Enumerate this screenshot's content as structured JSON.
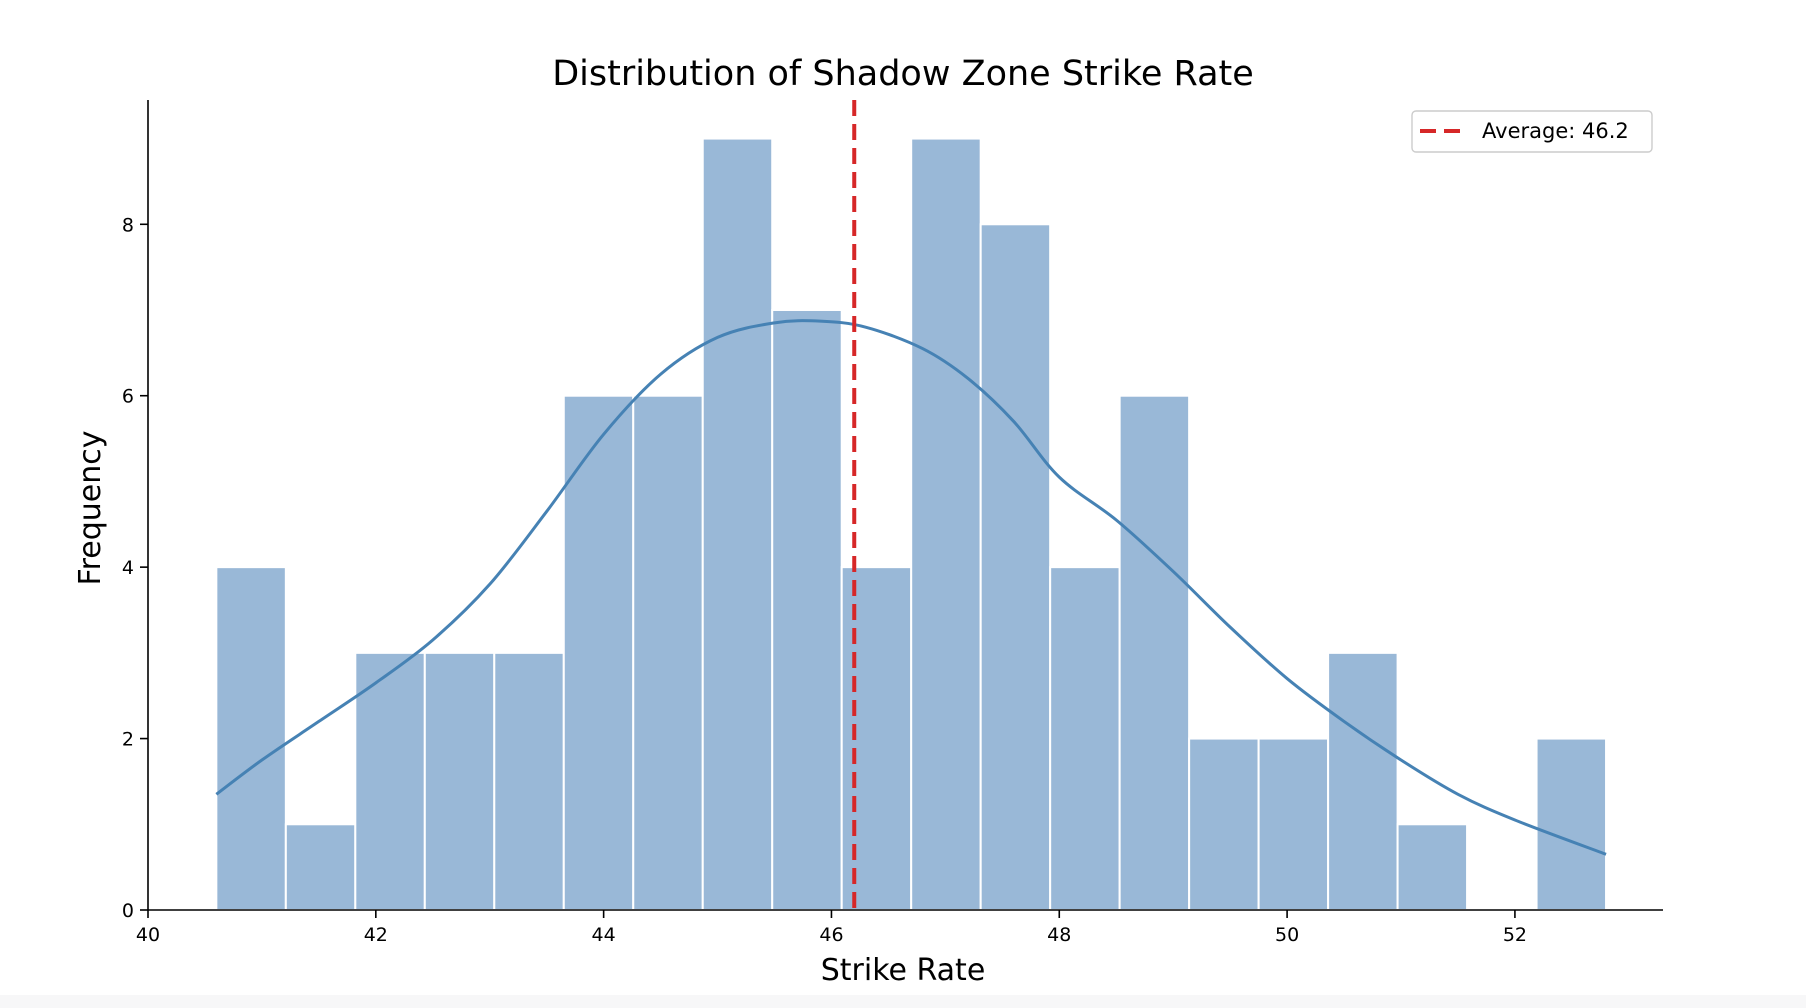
{
  "colors": {
    "bar_fill": "#99b8d7",
    "bar_edge": "#ffffff",
    "kde_line": "#4682b4",
    "mean_line": "#d62728",
    "axis": "#000000"
  },
  "chart_data": {
    "type": "histogram",
    "title": "Distribution of Shadow Zone Strike Rate",
    "xlabel": "Strike Rate",
    "ylabel": "Frequency",
    "xlim": [
      40,
      53.3
    ],
    "ylim": [
      0,
      9.45
    ],
    "xticks": [
      40,
      42,
      44,
      46,
      48,
      50,
      52
    ],
    "yticks": [
      0,
      2,
      4,
      6,
      8
    ],
    "grid": false,
    "legend_position": "top-right",
    "bins": [
      {
        "x0": 40.6,
        "x1": 41.21,
        "count": 4
      },
      {
        "x0": 41.21,
        "x1": 41.82,
        "count": 1
      },
      {
        "x0": 41.82,
        "x1": 42.43,
        "count": 3
      },
      {
        "x0": 42.43,
        "x1": 43.04,
        "count": 3
      },
      {
        "x0": 43.04,
        "x1": 43.65,
        "count": 3
      },
      {
        "x0": 43.65,
        "x1": 44.26,
        "count": 6
      },
      {
        "x0": 44.26,
        "x1": 44.87,
        "count": 6
      },
      {
        "x0": 44.87,
        "x1": 45.48,
        "count": 9
      },
      {
        "x0": 45.48,
        "x1": 46.09,
        "count": 7
      },
      {
        "x0": 46.09,
        "x1": 46.7,
        "count": 4
      },
      {
        "x0": 46.7,
        "x1": 47.31,
        "count": 9
      },
      {
        "x0": 47.31,
        "x1": 47.92,
        "count": 8
      },
      {
        "x0": 47.92,
        "x1": 48.53,
        "count": 4
      },
      {
        "x0": 48.53,
        "x1": 49.14,
        "count": 6
      },
      {
        "x0": 49.14,
        "x1": 49.75,
        "count": 2
      },
      {
        "x0": 49.75,
        "x1": 50.36,
        "count": 2
      },
      {
        "x0": 50.36,
        "x1": 50.97,
        "count": 3
      },
      {
        "x0": 50.97,
        "x1": 51.58,
        "count": 1
      },
      {
        "x0": 51.58,
        "x1": 52.19,
        "count": 0
      },
      {
        "x0": 52.19,
        "x1": 52.8,
        "count": 2
      }
    ],
    "kde": {
      "x": [
        40.6,
        41.0,
        41.5,
        42.0,
        42.5,
        43.0,
        43.5,
        44.0,
        44.5,
        45.0,
        45.5,
        45.9,
        46.3,
        46.8,
        47.2,
        47.6,
        48.0,
        48.5,
        49.0,
        49.5,
        50.0,
        50.5,
        51.0,
        51.5,
        52.0,
        52.8
      ],
      "y": [
        1.35,
        1.75,
        2.2,
        2.65,
        3.15,
        3.8,
        4.65,
        5.55,
        6.25,
        6.68,
        6.85,
        6.87,
        6.8,
        6.55,
        6.2,
        5.7,
        5.05,
        4.55,
        3.95,
        3.3,
        2.7,
        2.2,
        1.75,
        1.35,
        1.05,
        0.65
      ]
    },
    "mean": {
      "value": 46.2,
      "legend_label": "Average: 46.2"
    }
  }
}
